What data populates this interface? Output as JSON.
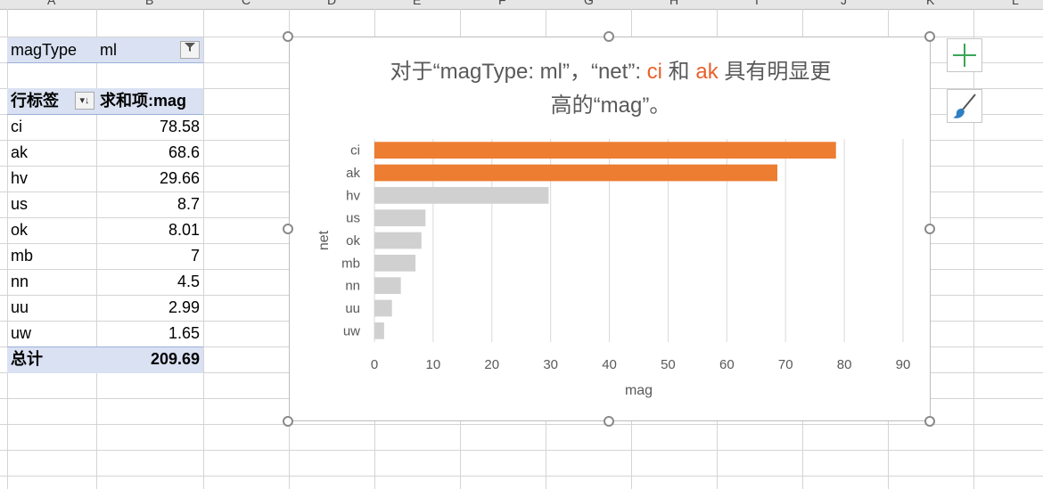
{
  "columns": [
    "A",
    "B",
    "C",
    "D",
    "E",
    "F",
    "G",
    "H",
    "I",
    "J",
    "K",
    "L"
  ],
  "pivot": {
    "filter_field": "magType",
    "filter_value": "ml",
    "row_label_header": "行标签",
    "value_header": "求和项:mag",
    "rows": [
      {
        "label": "ci",
        "value": "78.58"
      },
      {
        "label": "ak",
        "value": "68.6"
      },
      {
        "label": "hv",
        "value": "29.66"
      },
      {
        "label": "us",
        "value": "8.7"
      },
      {
        "label": "ok",
        "value": "8.01"
      },
      {
        "label": "mb",
        "value": "7"
      },
      {
        "label": "nn",
        "value": "4.5"
      },
      {
        "label": "uu",
        "value": "2.99"
      },
      {
        "label": "uw",
        "value": "1.65"
      }
    ],
    "total_label": "总计",
    "total_value": "209.69"
  },
  "chart": {
    "title_line1_a": "对于“magType: ml”，“net”: ",
    "title_hl1": "ci",
    "title_line1_b": " 和 ",
    "title_hl2": "ak",
    "title_line1_c": " 具有明显更",
    "title_line2": "高的“mag”。"
  },
  "side_buttons": {
    "add_icon": "plus-icon",
    "style_icon": "brush-icon"
  },
  "colors": {
    "highlight": "#ed7d31",
    "muted": "#d0d0d0",
    "grid": "#d9d9d9",
    "accent_text": "#e8612c",
    "add_green": "#3aa655",
    "brush_blue": "#2f7fc1"
  },
  "chart_data": {
    "type": "bar",
    "orientation": "horizontal",
    "categories": [
      "ci",
      "ak",
      "hv",
      "us",
      "ok",
      "mb",
      "nn",
      "uu",
      "uw"
    ],
    "values": [
      78.58,
      68.6,
      29.66,
      8.7,
      8.01,
      7,
      4.5,
      2.99,
      1.65
    ],
    "highlight": [
      "ci",
      "ak"
    ],
    "xlabel": "mag",
    "ylabel": "net",
    "xlim": [
      0,
      90
    ],
    "xticks": [
      "0",
      "10",
      "20",
      "30",
      "40",
      "50",
      "60",
      "70",
      "80",
      "90"
    ],
    "grid": true
  }
}
